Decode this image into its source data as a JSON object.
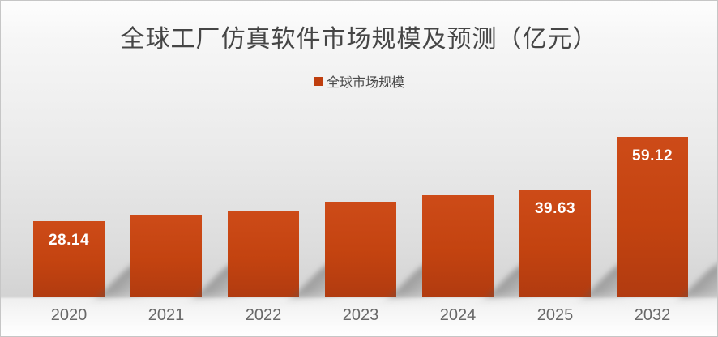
{
  "title": "全球工厂仿真软件市场规模及预测（亿元）",
  "legend": {
    "label": "全球市场规模",
    "swatch_color": "#bf3e0e"
  },
  "chart_data": {
    "type": "bar",
    "title": "全球工厂仿真软件市场规模及预测（亿元）",
    "legend_entries": [
      "全球市场规模"
    ],
    "legend_position": "top-center",
    "categories": [
      "2020",
      "2021",
      "2022",
      "2023",
      "2024",
      "2025",
      "2032"
    ],
    "series": [
      {
        "name": "全球市场规模",
        "values": [
          28.14,
          30.3,
          31.7,
          35.3,
          37.5,
          39.63,
          59.12
        ],
        "data_labels": [
          "28.14",
          "",
          "",
          "",
          "",
          "39.63",
          "59.12"
        ]
      }
    ],
    "ylim": [
      0,
      62
    ],
    "grid": false,
    "axes_visible": false,
    "bar_color_top": "#cd4b18",
    "bar_color_bottom": "#b13b10",
    "data_label_color": "#ffffff",
    "xtick_color": "#686868",
    "title_color": "#454545"
  }
}
